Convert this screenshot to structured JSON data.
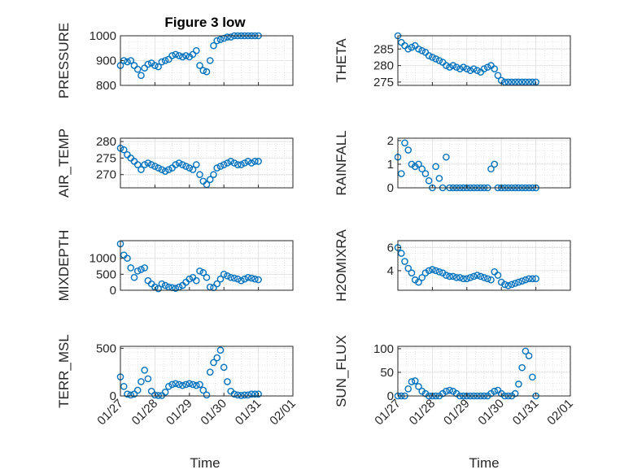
{
  "figure": {
    "title": "Figure 3 low",
    "xlabel": "Time",
    "x_ticks": [
      "01/27",
      "01/28",
      "01/29",
      "01/30",
      "01/31",
      "02/01"
    ],
    "marker_color": "#0072BD"
  },
  "chart_data": [
    {
      "type": "scatter",
      "ylabel": "PRESSURE",
      "xlim": [
        0,
        5
      ],
      "ylim": [
        800,
        1000
      ],
      "y_ticks": [
        800,
        900,
        1000
      ],
      "grid": true,
      "series": [
        {
          "x": [
            0.0,
            0.1,
            0.2,
            0.3,
            0.4,
            0.5,
            0.6,
            0.7,
            0.8,
            0.9,
            1.0,
            1.1,
            1.2,
            1.3,
            1.4,
            1.5,
            1.6,
            1.7,
            1.8,
            1.9,
            2.0,
            2.1,
            2.2,
            2.3,
            2.4,
            2.5,
            2.6,
            2.7,
            2.8,
            2.9,
            3.0,
            3.1,
            3.2,
            3.3,
            3.4,
            3.5,
            3.6,
            3.7,
            3.8,
            3.9,
            4.0
          ],
          "y": [
            880,
            900,
            895,
            900,
            880,
            865,
            840,
            870,
            885,
            890,
            880,
            875,
            895,
            900,
            905,
            920,
            925,
            920,
            915,
            920,
            915,
            925,
            940,
            880,
            860,
            855,
            900,
            960,
            980,
            985,
            990,
            995,
            995,
            1000,
            1000,
            1000,
            1000,
            1000,
            1000,
            1000,
            1000
          ]
        }
      ]
    },
    {
      "type": "scatter",
      "ylabel": "THETA",
      "xlim": [
        0,
        5
      ],
      "ylim": [
        274,
        289
      ],
      "y_ticks": [
        275,
        280,
        285
      ],
      "grid": true,
      "series": [
        {
          "x": [
            0.0,
            0.1,
            0.2,
            0.3,
            0.4,
            0.5,
            0.6,
            0.7,
            0.8,
            0.9,
            1.0,
            1.1,
            1.2,
            1.3,
            1.4,
            1.5,
            1.6,
            1.7,
            1.8,
            1.9,
            2.0,
            2.1,
            2.2,
            2.3,
            2.4,
            2.5,
            2.6,
            2.7,
            2.8,
            2.9,
            3.0,
            3.1,
            3.2,
            3.3,
            3.4,
            3.5,
            3.6,
            3.7,
            3.8,
            3.9,
            4.0
          ],
          "y": [
            289,
            287,
            286,
            285,
            285.5,
            286,
            285,
            284.5,
            284,
            283,
            282.5,
            282,
            281.5,
            281,
            280,
            279.5,
            280,
            279.5,
            279,
            279.5,
            279,
            278.5,
            279,
            278.5,
            278,
            279,
            279.5,
            280,
            279,
            277,
            275.5,
            275,
            275,
            275,
            275,
            275,
            275,
            275,
            275,
            275,
            275
          ]
        }
      ]
    },
    {
      "type": "scatter",
      "ylabel": "AIR_TEMP",
      "xlim": [
        0,
        5
      ],
      "ylim": [
        266,
        281
      ],
      "y_ticks": [
        270,
        275,
        280
      ],
      "grid": true,
      "series": [
        {
          "x": [
            0.0,
            0.1,
            0.2,
            0.3,
            0.4,
            0.5,
            0.6,
            0.7,
            0.8,
            0.9,
            1.0,
            1.1,
            1.2,
            1.3,
            1.4,
            1.5,
            1.6,
            1.7,
            1.8,
            1.9,
            2.0,
            2.1,
            2.2,
            2.3,
            2.4,
            2.5,
            2.6,
            2.7,
            2.8,
            2.9,
            3.0,
            3.1,
            3.2,
            3.3,
            3.4,
            3.5,
            3.6,
            3.7,
            3.8,
            3.9,
            4.0
          ],
          "y": [
            278,
            277.5,
            276,
            275,
            274,
            273,
            271.5,
            273,
            273.5,
            273,
            272.5,
            272,
            271.5,
            271,
            271.5,
            272,
            273,
            273.5,
            273,
            272.5,
            272,
            271.5,
            273,
            270,
            268,
            267,
            268.5,
            270,
            272,
            272.5,
            273,
            273.5,
            274,
            273.5,
            273,
            273,
            273.5,
            274,
            273.5,
            274,
            274
          ]
        }
      ]
    },
    {
      "type": "scatter",
      "ylabel": "RAINFALL",
      "xlim": [
        0,
        5
      ],
      "ylim": [
        0,
        2.1
      ],
      "y_ticks": [
        0,
        1,
        2
      ],
      "grid": true,
      "series": [
        {
          "x": [
            0.0,
            0.1,
            0.2,
            0.3,
            0.4,
            0.5,
            0.6,
            0.7,
            0.8,
            0.9,
            1.0,
            1.1,
            1.2,
            1.3,
            1.4,
            1.5,
            1.6,
            1.7,
            1.8,
            1.9,
            2.0,
            2.1,
            2.2,
            2.3,
            2.4,
            2.5,
            2.6,
            2.7,
            2.8,
            2.9,
            3.0,
            3.1,
            3.2,
            3.3,
            3.4,
            3.5,
            3.6,
            3.7,
            3.8,
            3.9,
            4.0
          ],
          "y": [
            1.3,
            0.6,
            1.9,
            1.6,
            1.0,
            0.9,
            1.0,
            0.8,
            0.6,
            0.3,
            0.0,
            0.9,
            0.4,
            0.0,
            1.3,
            0.0,
            0.0,
            0.0,
            0.0,
            0.0,
            0.0,
            0.0,
            0.0,
            0.0,
            0.0,
            0.0,
            0.0,
            0.8,
            1.0,
            0.0,
            0.0,
            0.0,
            0.0,
            0.0,
            0.0,
            0.0,
            0.0,
            0.0,
            0.0,
            0.0,
            0.0
          ]
        }
      ]
    },
    {
      "type": "scatter",
      "ylabel": "MIXDEPTH",
      "xlim": [
        0,
        5
      ],
      "ylim": [
        0,
        1550
      ],
      "y_ticks": [
        0,
        500,
        1000
      ],
      "grid": true,
      "series": [
        {
          "x": [
            0.0,
            0.1,
            0.2,
            0.3,
            0.4,
            0.5,
            0.6,
            0.7,
            0.8,
            0.9,
            1.0,
            1.1,
            1.2,
            1.3,
            1.4,
            1.5,
            1.6,
            1.7,
            1.8,
            1.9,
            2.0,
            2.1,
            2.2,
            2.3,
            2.4,
            2.5,
            2.6,
            2.7,
            2.8,
            2.9,
            3.0,
            3.1,
            3.2,
            3.3,
            3.4,
            3.5,
            3.6,
            3.7,
            3.8,
            3.9,
            4.0
          ],
          "y": [
            1450,
            1100,
            1000,
            700,
            400,
            600,
            650,
            700,
            300,
            200,
            100,
            50,
            200,
            150,
            100,
            80,
            60,
            100,
            150,
            250,
            350,
            400,
            300,
            600,
            550,
            400,
            100,
            80,
            200,
            350,
            500,
            450,
            400,
            380,
            350,
            300,
            350,
            400,
            380,
            350,
            330
          ]
        }
      ]
    },
    {
      "type": "scatter",
      "ylabel": "H2OMIXRA",
      "xlim": [
        0,
        5
      ],
      "ylim": [
        2.3,
        6.6
      ],
      "y_ticks": [
        4,
        6
      ],
      "grid": true,
      "series": [
        {
          "x": [
            0.0,
            0.1,
            0.2,
            0.3,
            0.4,
            0.5,
            0.6,
            0.7,
            0.8,
            0.9,
            1.0,
            1.1,
            1.2,
            1.3,
            1.4,
            1.5,
            1.6,
            1.7,
            1.8,
            1.9,
            2.0,
            2.1,
            2.2,
            2.3,
            2.4,
            2.5,
            2.6,
            2.7,
            2.8,
            2.9,
            3.0,
            3.1,
            3.2,
            3.3,
            3.4,
            3.5,
            3.6,
            3.7,
            3.8,
            3.9,
            4.0
          ],
          "y": [
            6.0,
            5.5,
            4.8,
            4.2,
            3.8,
            3.2,
            3.0,
            3.4,
            3.8,
            4.0,
            4.1,
            4.0,
            3.9,
            3.8,
            3.6,
            3.5,
            3.5,
            3.4,
            3.4,
            3.3,
            3.3,
            3.4,
            3.5,
            3.6,
            3.5,
            3.4,
            3.3,
            3.2,
            3.9,
            3.6,
            3.0,
            2.8,
            2.7,
            2.8,
            2.9,
            3.0,
            3.1,
            3.2,
            3.3,
            3.3,
            3.3
          ]
        }
      ]
    },
    {
      "type": "scatter",
      "ylabel": "TERR_MSL",
      "xlim": [
        0,
        5
      ],
      "ylim": [
        0,
        520
      ],
      "y_ticks": [
        0,
        500
      ],
      "grid": true,
      "series": [
        {
          "x": [
            0.0,
            0.1,
            0.2,
            0.3,
            0.4,
            0.5,
            0.6,
            0.7,
            0.8,
            0.9,
            1.0,
            1.1,
            1.2,
            1.3,
            1.4,
            1.5,
            1.6,
            1.7,
            1.8,
            1.9,
            2.0,
            2.1,
            2.2,
            2.3,
            2.4,
            2.5,
            2.6,
            2.7,
            2.8,
            2.9,
            3.0,
            3.1,
            3.2,
            3.3,
            3.4,
            3.5,
            3.6,
            3.7,
            3.8,
            3.9,
            4.0
          ],
          "y": [
            200,
            100,
            20,
            10,
            20,
            60,
            150,
            270,
            180,
            50,
            10,
            5,
            5,
            40,
            100,
            120,
            130,
            120,
            110,
            120,
            130,
            120,
            110,
            120,
            60,
            10,
            250,
            350,
            400,
            480,
            300,
            150,
            50,
            20,
            10,
            5,
            10,
            10,
            20,
            20,
            20
          ]
        }
      ]
    },
    {
      "type": "scatter",
      "ylabel": "SUN_FLUX",
      "xlim": [
        0,
        5
      ],
      "ylim": [
        0,
        105
      ],
      "y_ticks": [
        0,
        50,
        100
      ],
      "grid": true,
      "series": [
        {
          "x": [
            0.0,
            0.1,
            0.2,
            0.3,
            0.4,
            0.5,
            0.6,
            0.7,
            0.8,
            0.9,
            1.0,
            1.1,
            1.2,
            1.3,
            1.4,
            1.5,
            1.6,
            1.7,
            1.8,
            1.9,
            2.0,
            2.1,
            2.2,
            2.3,
            2.4,
            2.5,
            2.6,
            2.7,
            2.8,
            2.9,
            3.0,
            3.1,
            3.2,
            3.3,
            3.4,
            3.5,
            3.6,
            3.7,
            3.8,
            3.9,
            4.0
          ],
          "y": [
            0,
            0,
            0,
            15,
            30,
            32,
            20,
            10,
            5,
            0,
            0,
            0,
            0,
            5,
            10,
            12,
            10,
            5,
            0,
            0,
            0,
            0,
            0,
            0,
            0,
            0,
            0,
            5,
            10,
            12,
            5,
            0,
            0,
            0,
            5,
            25,
            60,
            95,
            85,
            40,
            0
          ]
        }
      ]
    }
  ]
}
